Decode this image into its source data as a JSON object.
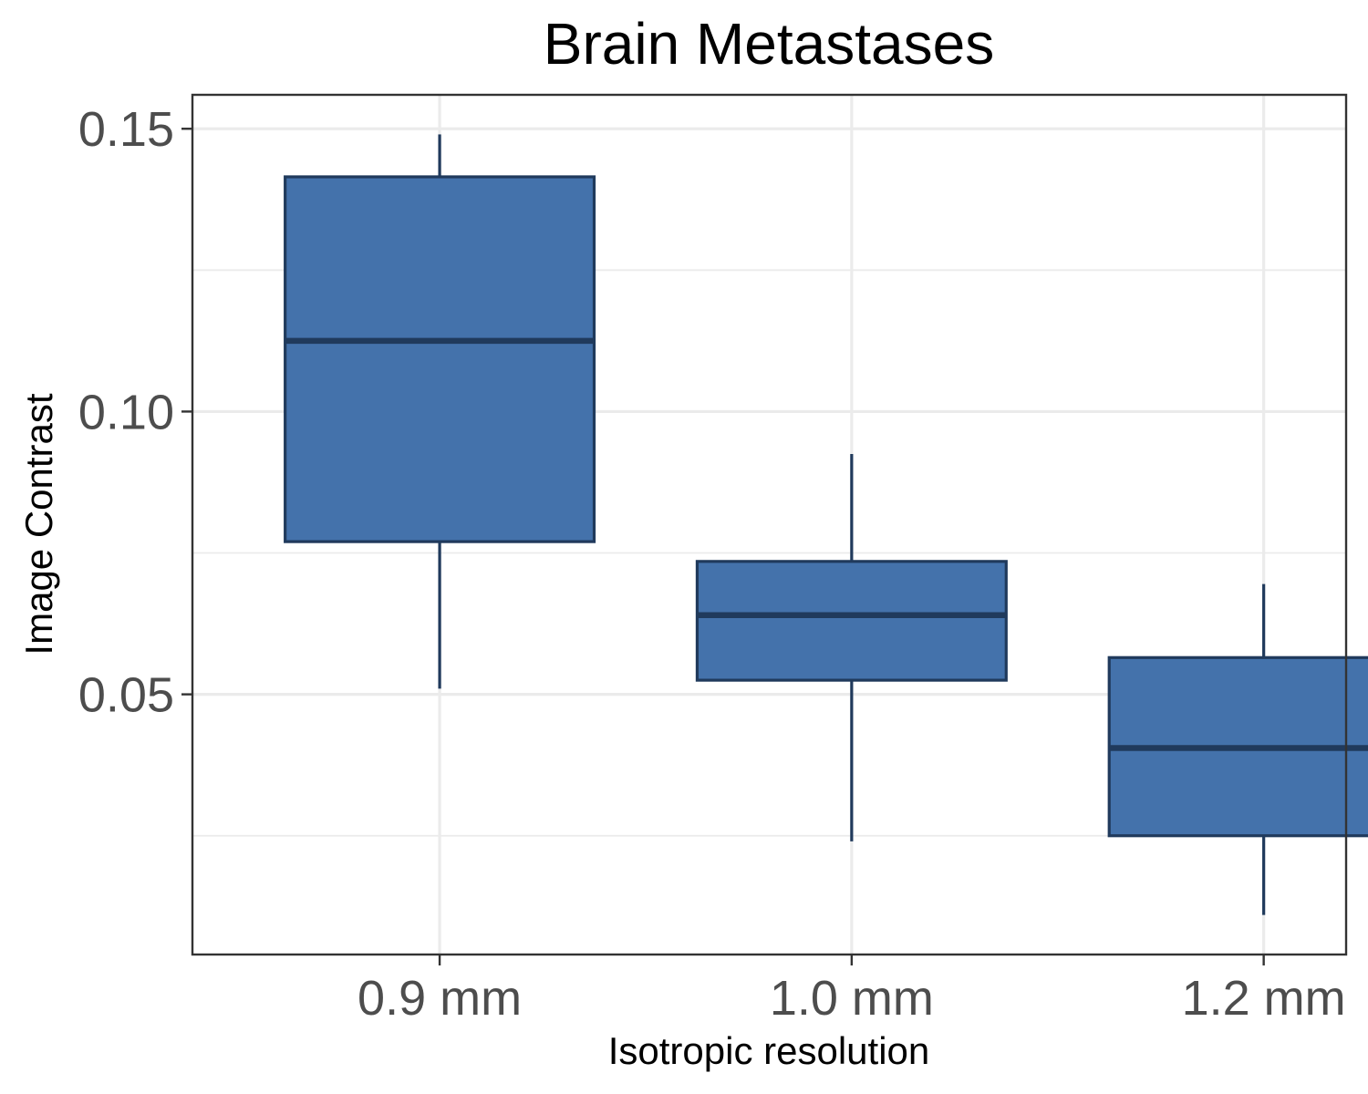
{
  "chart_data": {
    "type": "boxplot",
    "title": "Brain Metastases",
    "xlabel": "Isotropic resolution",
    "ylabel": "Image Contrast",
    "categories": [
      "0.9 mm",
      "1.0 mm",
      "1.2 mm"
    ],
    "ylim": [
      0.004,
      0.156
    ],
    "y_ticks": [
      0.05,
      0.1,
      0.15
    ],
    "y_tick_labels": [
      "0.05",
      "0.10",
      "0.15"
    ],
    "y_minor_ticks": [
      0.025,
      0.075,
      0.125
    ],
    "grid": true,
    "boxes": [
      {
        "category": "0.9 mm",
        "whisker_low": 0.051,
        "q1": 0.077,
        "median": 0.1125,
        "q3": 0.1415,
        "whisker_high": 0.149
      },
      {
        "category": "1.0 mm",
        "whisker_low": 0.024,
        "q1": 0.0525,
        "median": 0.064,
        "q3": 0.0735,
        "whisker_high": 0.0925
      },
      {
        "category": "1.2 mm",
        "whisker_low": 0.011,
        "q1": 0.025,
        "median": 0.0405,
        "q3": 0.0565,
        "whisker_high": 0.0695
      }
    ],
    "colors": {
      "fill": "#4472ab",
      "outline": "#203a5c"
    }
  }
}
